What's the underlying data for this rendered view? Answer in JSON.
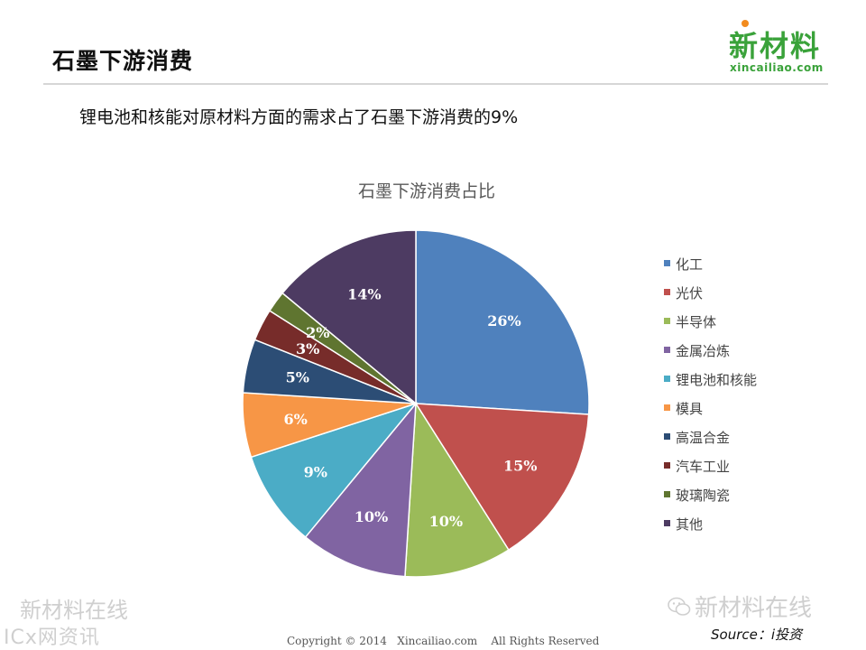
{
  "header": {
    "title": "石墨下游消费",
    "logo_main": "新材料",
    "logo_sub": "xincailiao.com"
  },
  "subtitle": "锂电池和核能对原材料方面的需求占了石墨下游消费的9%",
  "chart_data": {
    "type": "pie",
    "title": "石墨下游消费占比",
    "categories": [
      "化工",
      "光伏",
      "半导体",
      "金属冶炼",
      "锂电池和核能",
      "模具",
      "高温合金",
      "汽车工业",
      "玻璃陶瓷",
      "其他"
    ],
    "values": [
      26,
      15,
      10,
      10,
      9,
      6,
      5,
      3,
      2,
      14
    ],
    "data_labels": [
      "26%",
      "15%",
      "10%",
      "10%",
      "9%",
      "6%",
      "5%",
      "3%",
      "2%",
      "14%"
    ],
    "colors": [
      "#4f81bd",
      "#c0504d",
      "#9bbb59",
      "#8064a2",
      "#4bacc6",
      "#f79646",
      "#2c4d75",
      "#772c2a",
      "#5f7530",
      "#4d3b62"
    ],
    "legend_position": "right",
    "start_angle_deg": 0,
    "direction": "clockwise"
  },
  "footer": {
    "watermark_left_1": "新材料在线",
    "watermark_left_2": "ICx网资讯",
    "watermark_right": "新材料在线",
    "copyright": "Copyright © 2014   Xincailiao.com    All Rights Reserved",
    "source": "Source：i投资"
  }
}
